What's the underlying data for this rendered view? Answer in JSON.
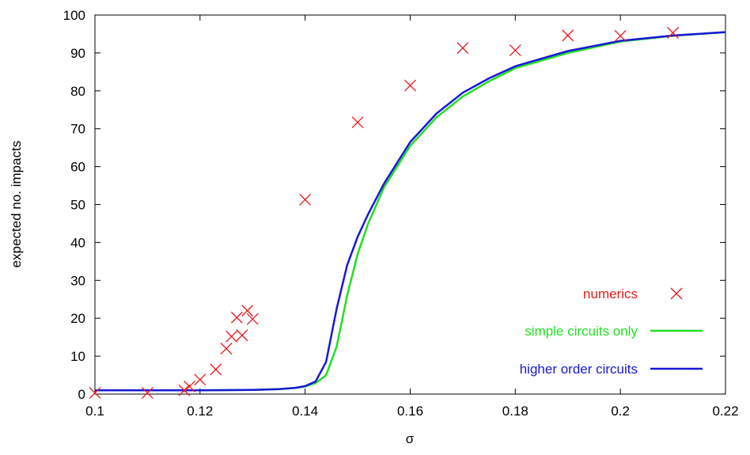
{
  "chart_data": {
    "type": "line",
    "xlabel": "σ",
    "ylabel": "expected no. impacts",
    "xlim": [
      0.1,
      0.22
    ],
    "ylim": [
      0,
      100
    ],
    "xticks": [
      "0.1",
      "0.12",
      "0.14",
      "0.16",
      "0.18",
      "0.2",
      "0.22"
    ],
    "yticks": [
      "0",
      "10",
      "20",
      "30",
      "40",
      "50",
      "60",
      "70",
      "80",
      "90",
      "100"
    ],
    "grid": false,
    "legend_position": "bottom-right",
    "series": [
      {
        "name": "numerics",
        "kind": "scatter",
        "marker": "x",
        "color": "#e8181c",
        "x": [
          0.1,
          0.11,
          0.117,
          0.118,
          0.12,
          0.123,
          0.125,
          0.126,
          0.127,
          0.128,
          0.129,
          0.13,
          0.14,
          0.15,
          0.16,
          0.17,
          0.18,
          0.19,
          0.2,
          0.21
        ],
        "y": [
          0.3,
          0.3,
          1.0,
          2.0,
          3.8,
          6.5,
          12.0,
          15.2,
          20.2,
          15.5,
          22.0,
          19.8,
          51.3,
          71.7,
          81.4,
          91.3,
          90.7,
          94.6,
          94.5,
          95.3
        ]
      },
      {
        "name": "simple circuits only",
        "kind": "line",
        "color": "#21e021",
        "x": [
          0.1,
          0.12,
          0.13,
          0.135,
          0.138,
          0.14,
          0.142,
          0.144,
          0.146,
          0.148,
          0.15,
          0.152,
          0.155,
          0.16,
          0.165,
          0.17,
          0.175,
          0.18,
          0.19,
          0.2,
          0.21,
          0.22
        ],
        "y": [
          1.0,
          1.0,
          1.1,
          1.3,
          1.6,
          2.0,
          2.9,
          5.0,
          12.5,
          26.0,
          37.0,
          45.0,
          54.5,
          65.5,
          73.0,
          78.5,
          82.5,
          86.0,
          90.0,
          93.0,
          94.5,
          95.5
        ]
      },
      {
        "name": "higher order circuits",
        "kind": "line",
        "color": "#1818d8",
        "x": [
          0.1,
          0.12,
          0.13,
          0.135,
          0.138,
          0.14,
          0.142,
          0.144,
          0.146,
          0.148,
          0.15,
          0.152,
          0.155,
          0.16,
          0.165,
          0.17,
          0.175,
          0.18,
          0.19,
          0.2,
          0.21,
          0.22
        ],
        "y": [
          1.0,
          1.0,
          1.1,
          1.3,
          1.6,
          2.1,
          3.3,
          8.5,
          22.5,
          34.0,
          41.5,
          47.5,
          55.5,
          66.5,
          74.0,
          79.5,
          83.3,
          86.5,
          90.5,
          93.2,
          94.6,
          95.5
        ]
      }
    ]
  }
}
